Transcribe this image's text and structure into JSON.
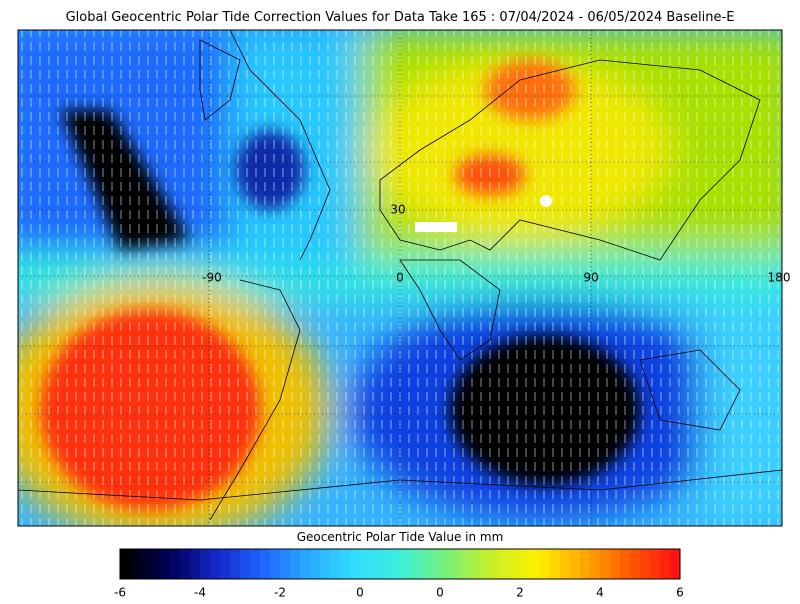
{
  "header": {
    "title": "Global Geocentric Polar Tide Correction Values for Data Take 165 : 07/04/2024 - 06/05/2024 Baseline-E"
  },
  "map": {
    "labels": [
      "30",
      "-90",
      "0",
      "90",
      "180"
    ]
  },
  "colorbar": {
    "title": "Geocentric Polar Tide Value in mm",
    "ticks": [
      "-6",
      "-4",
      "-2",
      "0",
      "0",
      "2",
      "4",
      "6"
    ]
  }
}
